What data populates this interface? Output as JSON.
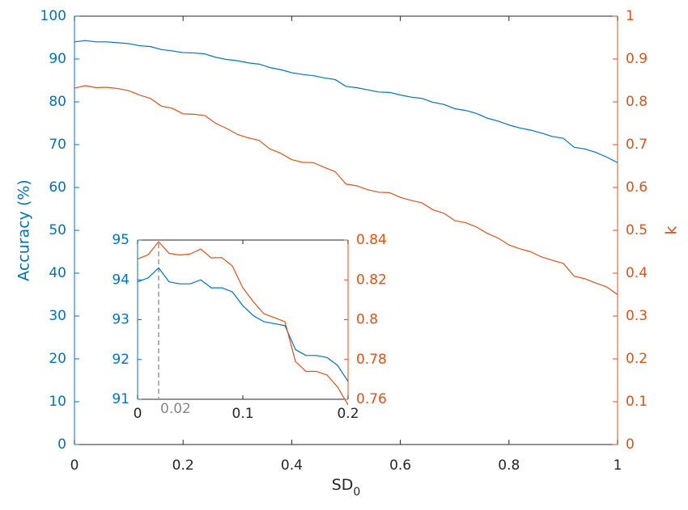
{
  "chart_data": [
    {
      "type": "line",
      "xlabel": "SD",
      "xlabel_subscript": "0",
      "ylabel_left": "Accuracy (%)",
      "ylabel_right": "k",
      "xlim": [
        0,
        1
      ],
      "ylim_left": [
        0,
        100
      ],
      "ylim_right": [
        0,
        1
      ],
      "xticks": [
        "0",
        "0.2",
        "0.4",
        "0.6",
        "0.8",
        "1"
      ],
      "yticks_left": [
        "0",
        "10",
        "20",
        "30",
        "40",
        "50",
        "60",
        "70",
        "80",
        "90",
        "100"
      ],
      "yticks_right": [
        "0",
        "0.1",
        "0.2",
        "0.3",
        "0.4",
        "0.5",
        "0.6",
        "0.7",
        "0.8",
        "0.9",
        "1"
      ],
      "grid": false,
      "colors": {
        "accuracy": "#0072BD",
        "kappa": "#D95319",
        "axis": "#262626"
      },
      "series": [
        {
          "axis": "left",
          "x": [
            0,
            0.02,
            0.04,
            0.06,
            0.08,
            0.1,
            0.12,
            0.14,
            0.16,
            0.18,
            0.2,
            0.22,
            0.24,
            0.26,
            0.28,
            0.3,
            0.32,
            0.34,
            0.36,
            0.38,
            0.4,
            0.42,
            0.44,
            0.46,
            0.48,
            0.5,
            0.52,
            0.54,
            0.56,
            0.58,
            0.6,
            0.62,
            0.64,
            0.66,
            0.68,
            0.7,
            0.72,
            0.74,
            0.76,
            0.78,
            0.8,
            0.82,
            0.84,
            0.86,
            0.88,
            0.9,
            0.92,
            0.94,
            0.96,
            0.98,
            1.0
          ],
          "values": [
            94.0,
            94.3,
            94.0,
            94.0,
            93.8,
            93.6,
            93.1,
            92.9,
            92.2,
            91.9,
            91.5,
            91.4,
            91.2,
            90.4,
            89.9,
            89.6,
            89.1,
            88.8,
            88.0,
            87.5,
            86.8,
            86.4,
            86.1,
            85.6,
            85.2,
            83.6,
            83.3,
            82.8,
            82.3,
            82.2,
            81.6,
            81.1,
            80.8,
            79.9,
            79.4,
            78.4,
            78.0,
            77.3,
            76.2,
            75.5,
            74.6,
            73.9,
            73.4,
            72.7,
            71.9,
            71.5,
            69.4,
            69.0,
            68.2,
            67.1,
            65.8
          ]
        },
        {
          "axis": "right",
          "x": [
            0,
            0.02,
            0.04,
            0.06,
            0.08,
            0.1,
            0.12,
            0.14,
            0.16,
            0.18,
            0.2,
            0.22,
            0.24,
            0.26,
            0.28,
            0.3,
            0.32,
            0.34,
            0.36,
            0.38,
            0.4,
            0.42,
            0.44,
            0.46,
            0.48,
            0.5,
            0.52,
            0.54,
            0.56,
            0.58,
            0.6,
            0.62,
            0.64,
            0.66,
            0.68,
            0.7,
            0.72,
            0.74,
            0.76,
            0.78,
            0.8,
            0.82,
            0.84,
            0.86,
            0.88,
            0.9,
            0.92,
            0.94,
            0.96,
            0.98,
            1.0
          ],
          "values": [
            0.832,
            0.838,
            0.833,
            0.834,
            0.831,
            0.826,
            0.816,
            0.808,
            0.79,
            0.785,
            0.772,
            0.771,
            0.768,
            0.75,
            0.738,
            0.724,
            0.716,
            0.71,
            0.69,
            0.68,
            0.665,
            0.659,
            0.658,
            0.647,
            0.637,
            0.608,
            0.604,
            0.595,
            0.589,
            0.588,
            0.577,
            0.57,
            0.564,
            0.548,
            0.54,
            0.523,
            0.518,
            0.508,
            0.493,
            0.482,
            0.466,
            0.457,
            0.45,
            0.438,
            0.43,
            0.423,
            0.393,
            0.387,
            0.377,
            0.368,
            0.35
          ]
        }
      ]
    },
    {
      "type": "line",
      "role": "inset",
      "xlim": [
        0,
        0.2
      ],
      "ylim_left": [
        91,
        95
      ],
      "ylim_right": [
        0.76,
        0.84
      ],
      "xticks": [
        "0",
        "0.1",
        "0.2"
      ],
      "yticks_left": [
        "91",
        "92",
        "93",
        "94",
        "95"
      ],
      "yticks_right": [
        "0.76",
        "0.78",
        "0.8",
        "0.82",
        "0.84"
      ],
      "annotation": {
        "label": "0.02",
        "x": 0.02
      },
      "series": [
        {
          "axis": "left",
          "x": [
            0,
            0.01,
            0.02,
            0.03,
            0.04,
            0.05,
            0.06,
            0.07,
            0.08,
            0.09,
            0.1,
            0.11,
            0.12,
            0.13,
            0.14,
            0.15,
            0.16,
            0.17,
            0.18,
            0.19,
            0.2
          ],
          "values": [
            93.95,
            94.05,
            94.3,
            93.95,
            93.9,
            93.9,
            94.0,
            93.8,
            93.8,
            93.7,
            93.35,
            93.1,
            92.95,
            92.9,
            92.85,
            92.25,
            92.1,
            92.1,
            92.05,
            91.85,
            91.45
          ]
        },
        {
          "axis": "right",
          "x": [
            0,
            0.01,
            0.02,
            0.03,
            0.04,
            0.05,
            0.06,
            0.07,
            0.08,
            0.09,
            0.1,
            0.11,
            0.12,
            0.13,
            0.14,
            0.15,
            0.16,
            0.17,
            0.18,
            0.19,
            0.2
          ],
          "values": [
            0.8305,
            0.8326,
            0.8392,
            0.8333,
            0.8325,
            0.833,
            0.8355,
            0.831,
            0.8312,
            0.827,
            0.816,
            0.809,
            0.803,
            0.801,
            0.799,
            0.779,
            0.774,
            0.774,
            0.7722,
            0.7662,
            0.7572
          ]
        }
      ]
    }
  ]
}
